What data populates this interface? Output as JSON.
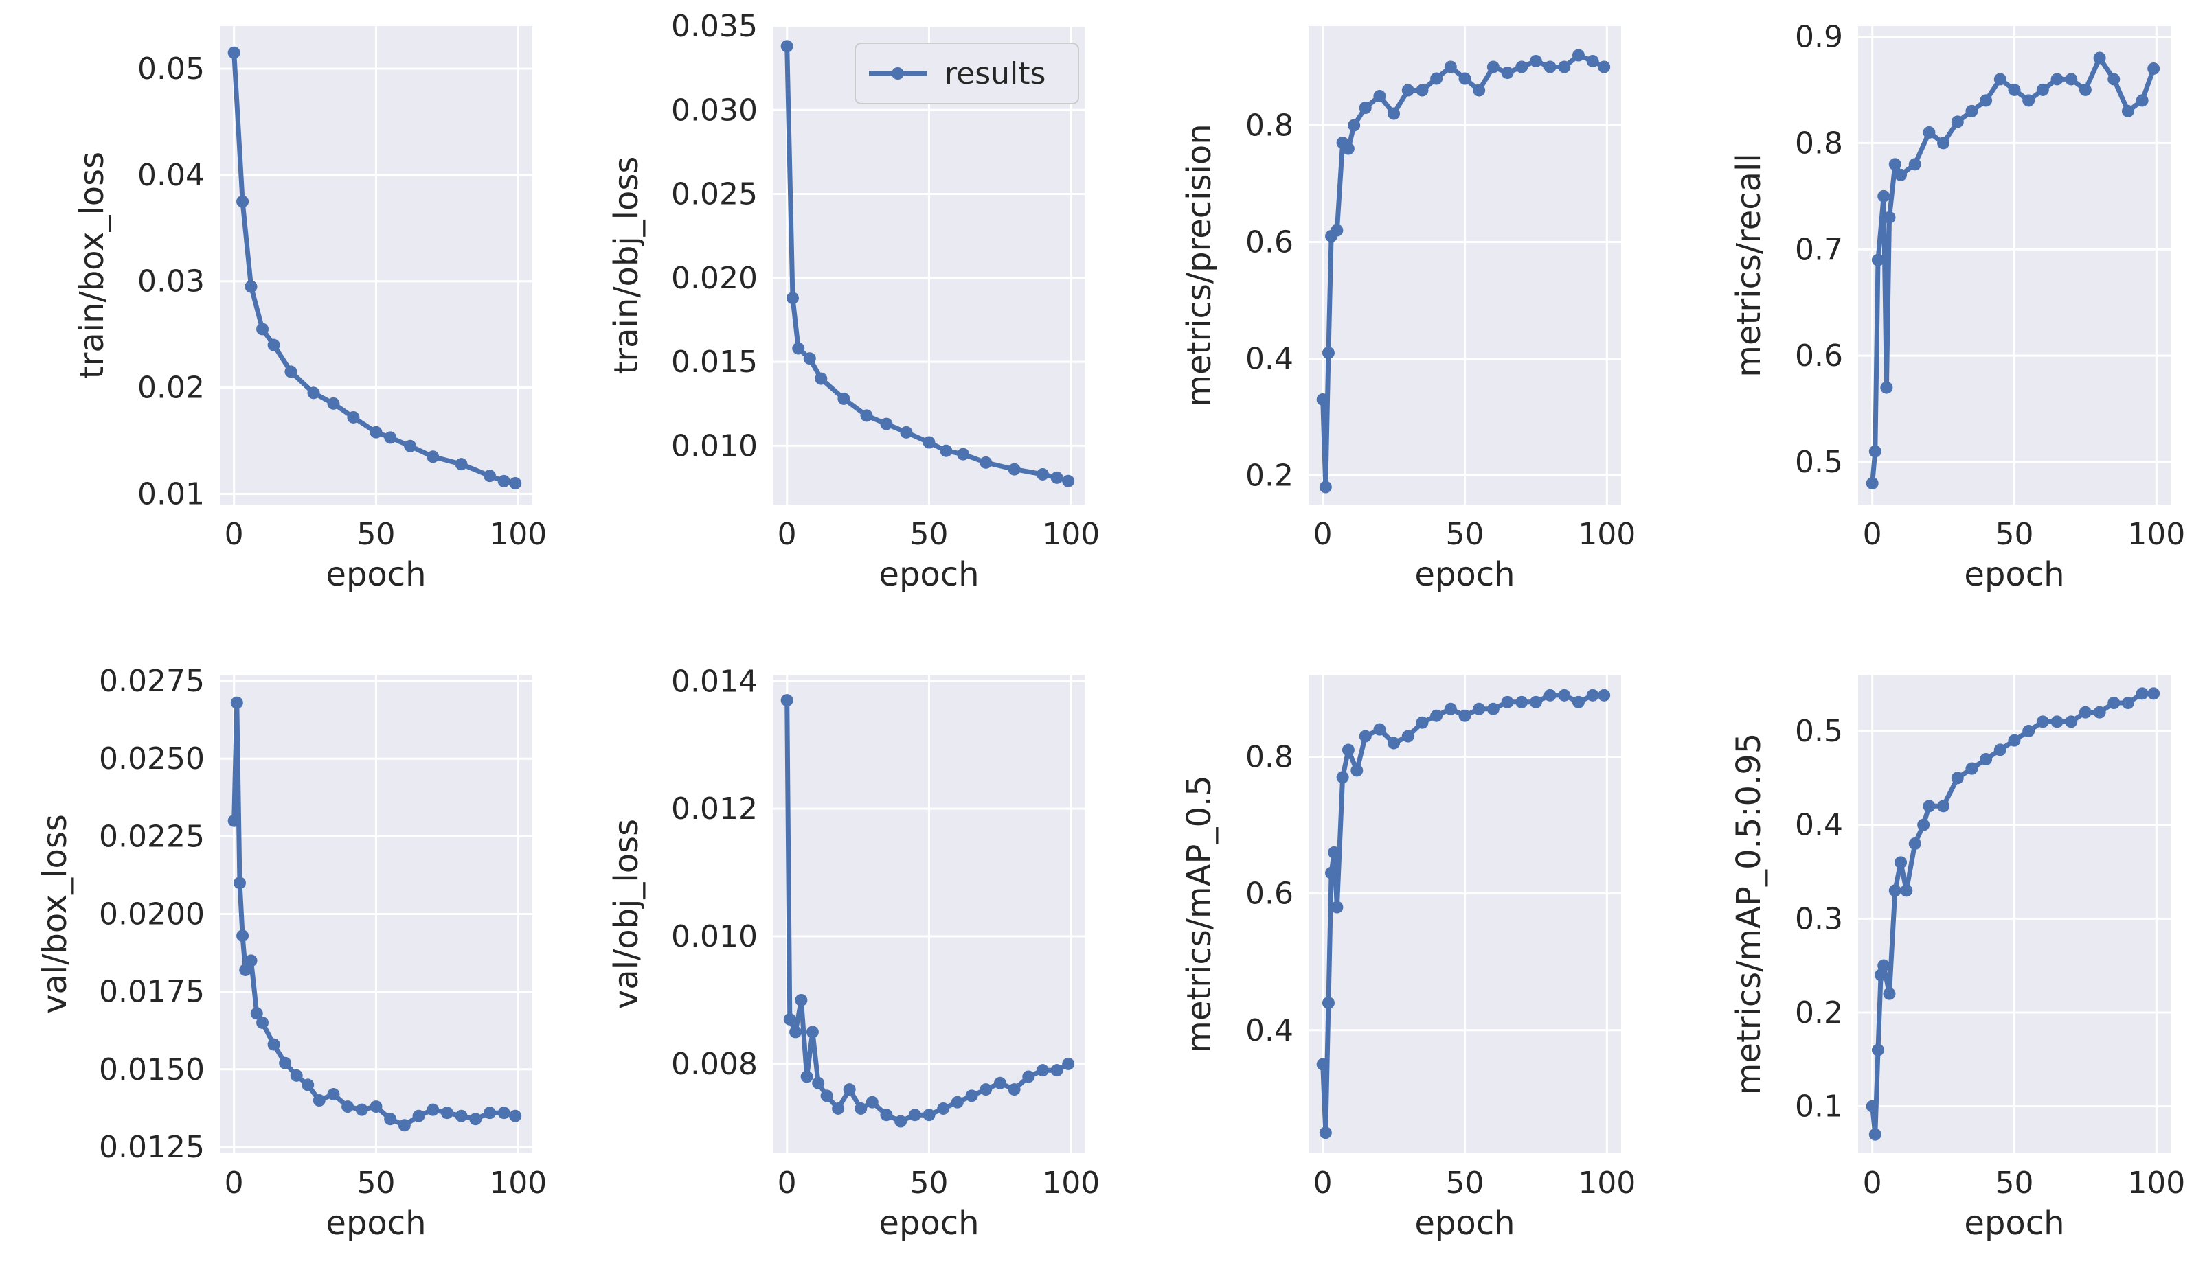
{
  "figure_title": "",
  "colors": {
    "background": "#ffffff",
    "axes_face": "#eaeaf2",
    "grid": "#ffffff",
    "series": "#4c72b0",
    "text": "#262626",
    "legend_border": "#cccccc"
  },
  "legend": {
    "label": "results",
    "placement": "upper-right of train/obj_loss"
  },
  "chart_data": [
    {
      "type": "line",
      "title": "",
      "xlabel": "epoch",
      "ylabel": "train/box_loss",
      "xlim": [
        -5,
        105
      ],
      "ylim": [
        0.009,
        0.054
      ],
      "xticks": [
        0,
        50,
        100
      ],
      "xtick_labels": [
        "0",
        "50",
        "100"
      ],
      "yticks": [
        0.01,
        0.02,
        0.03,
        0.04,
        0.05
      ],
      "ytick_labels": [
        "0.01",
        "0.02",
        "0.03",
        "0.04",
        "0.05"
      ],
      "series": [
        {
          "name": "results",
          "x": [
            0,
            3,
            6,
            10,
            14,
            20,
            28,
            35,
            42,
            50,
            55,
            62,
            70,
            80,
            90,
            95,
            99
          ],
          "values": [
            0.0515,
            0.0375,
            0.0295,
            0.0255,
            0.024,
            0.0215,
            0.0195,
            0.0185,
            0.0172,
            0.0158,
            0.0153,
            0.0145,
            0.0135,
            0.0128,
            0.0117,
            0.0112,
            0.011
          ]
        }
      ]
    },
    {
      "type": "line",
      "title": "",
      "xlabel": "epoch",
      "ylabel": "train/obj_loss",
      "xlim": [
        -5,
        105
      ],
      "ylim": [
        0.0065,
        0.035
      ],
      "xticks": [
        0,
        50,
        100
      ],
      "xtick_labels": [
        "0",
        "50",
        "100"
      ],
      "yticks": [
        0.01,
        0.015,
        0.02,
        0.025,
        0.03,
        0.035
      ],
      "ytick_labels": [
        "0.010",
        "0.015",
        "0.020",
        "0.025",
        "0.030",
        "0.035"
      ],
      "legend": true,
      "series": [
        {
          "name": "results",
          "x": [
            0,
            2,
            4,
            8,
            12,
            20,
            28,
            35,
            42,
            50,
            56,
            62,
            70,
            80,
            90,
            95,
            99
          ],
          "values": [
            0.0338,
            0.0188,
            0.0158,
            0.0152,
            0.014,
            0.0128,
            0.0118,
            0.0113,
            0.0108,
            0.0102,
            0.0097,
            0.0095,
            0.009,
            0.0086,
            0.0083,
            0.0081,
            0.0079
          ]
        }
      ]
    },
    {
      "type": "line",
      "title": "",
      "xlabel": "epoch",
      "ylabel": "metrics/precision",
      "xlim": [
        -5,
        105
      ],
      "ylim": [
        0.15,
        0.97
      ],
      "xticks": [
        0,
        50,
        100
      ],
      "xtick_labels": [
        "0",
        "50",
        "100"
      ],
      "yticks": [
        0.2,
        0.4,
        0.6,
        0.8
      ],
      "ytick_labels": [
        "0.2",
        "0.4",
        "0.6",
        "0.8"
      ],
      "series": [
        {
          "name": "results",
          "x": [
            0,
            1,
            2,
            3,
            5,
            7,
            9,
            11,
            15,
            20,
            25,
            30,
            35,
            40,
            45,
            50,
            55,
            60,
            65,
            70,
            75,
            80,
            85,
            90,
            95,
            99
          ],
          "values": [
            0.33,
            0.18,
            0.41,
            0.61,
            0.62,
            0.77,
            0.76,
            0.8,
            0.83,
            0.85,
            0.82,
            0.86,
            0.86,
            0.88,
            0.9,
            0.88,
            0.86,
            0.9,
            0.89,
            0.9,
            0.91,
            0.9,
            0.9,
            0.92,
            0.91,
            0.9
          ]
        }
      ]
    },
    {
      "type": "line",
      "title": "",
      "xlabel": "epoch",
      "ylabel": "metrics/recall",
      "xlim": [
        -5,
        105
      ],
      "ylim": [
        0.46,
        0.91
      ],
      "xticks": [
        0,
        50,
        100
      ],
      "xtick_labels": [
        "0",
        "50",
        "100"
      ],
      "yticks": [
        0.5,
        0.6,
        0.7,
        0.8,
        0.9
      ],
      "ytick_labels": [
        "0.5",
        "0.6",
        "0.7",
        "0.8",
        "0.9"
      ],
      "series": [
        {
          "name": "results",
          "x": [
            0,
            1,
            2,
            4,
            5,
            6,
            8,
            10,
            15,
            20,
            25,
            30,
            35,
            40,
            45,
            50,
            55,
            60,
            65,
            70,
            75,
            80,
            85,
            90,
            95,
            99
          ],
          "values": [
            0.48,
            0.51,
            0.69,
            0.75,
            0.57,
            0.73,
            0.78,
            0.77,
            0.78,
            0.81,
            0.8,
            0.82,
            0.83,
            0.84,
            0.86,
            0.85,
            0.84,
            0.85,
            0.86,
            0.86,
            0.85,
            0.88,
            0.86,
            0.83,
            0.84,
            0.87
          ]
        }
      ]
    },
    {
      "type": "line",
      "title": "",
      "xlabel": "epoch",
      "ylabel": "val/box_loss",
      "xlim": [
        -5,
        105
      ],
      "ylim": [
        0.0123,
        0.0277
      ],
      "xticks": [
        0,
        50,
        100
      ],
      "xtick_labels": [
        "0",
        "50",
        "100"
      ],
      "yticks": [
        0.0125,
        0.015,
        0.0175,
        0.02,
        0.0225,
        0.025,
        0.0275
      ],
      "ytick_labels": [
        "0.0125",
        "0.0150",
        "0.0175",
        "0.0200",
        "0.0225",
        "0.0250",
        "0.0275"
      ],
      "series": [
        {
          "name": "results",
          "x": [
            0,
            1,
            2,
            3,
            4,
            6,
            8,
            10,
            14,
            18,
            22,
            26,
            30,
            35,
            40,
            45,
            50,
            55,
            60,
            65,
            70,
            75,
            80,
            85,
            90,
            95,
            99
          ],
          "values": [
            0.023,
            0.0268,
            0.021,
            0.0193,
            0.0182,
            0.0185,
            0.0168,
            0.0165,
            0.0158,
            0.0152,
            0.0148,
            0.0145,
            0.014,
            0.0142,
            0.0138,
            0.0137,
            0.0138,
            0.0134,
            0.0132,
            0.0135,
            0.0137,
            0.0136,
            0.0135,
            0.0134,
            0.0136,
            0.0136,
            0.0135
          ]
        }
      ]
    },
    {
      "type": "line",
      "title": "",
      "xlabel": "epoch",
      "ylabel": "val/obj_loss",
      "xlim": [
        -5,
        105
      ],
      "ylim": [
        0.0066,
        0.0141
      ],
      "xticks": [
        0,
        50,
        100
      ],
      "xtick_labels": [
        "0",
        "50",
        "100"
      ],
      "yticks": [
        0.008,
        0.01,
        0.012,
        0.014
      ],
      "ytick_labels": [
        "0.008",
        "0.010",
        "0.012",
        "0.014"
      ],
      "series": [
        {
          "name": "results",
          "x": [
            0,
            1,
            3,
            5,
            7,
            9,
            11,
            14,
            18,
            22,
            26,
            30,
            35,
            40,
            45,
            50,
            55,
            60,
            65,
            70,
            75,
            80,
            85,
            90,
            95,
            99
          ],
          "values": [
            0.0137,
            0.0087,
            0.0085,
            0.009,
            0.0078,
            0.0085,
            0.0077,
            0.0075,
            0.0073,
            0.0076,
            0.0073,
            0.0074,
            0.0072,
            0.0071,
            0.0072,
            0.0072,
            0.0073,
            0.0074,
            0.0075,
            0.0076,
            0.0077,
            0.0076,
            0.0078,
            0.0079,
            0.0079,
            0.008
          ]
        }
      ]
    },
    {
      "type": "line",
      "title": "",
      "xlabel": "epoch",
      "ylabel": "metrics/mAP_0.5",
      "xlim": [
        -5,
        105
      ],
      "ylim": [
        0.22,
        0.92
      ],
      "xticks": [
        0,
        50,
        100
      ],
      "xtick_labels": [
        "0",
        "50",
        "100"
      ],
      "yticks": [
        0.4,
        0.6,
        0.8
      ],
      "ytick_labels": [
        "0.4",
        "0.6",
        "0.8"
      ],
      "series": [
        {
          "name": "results",
          "x": [
            0,
            1,
            2,
            3,
            4,
            5,
            7,
            9,
            12,
            15,
            20,
            25,
            30,
            35,
            40,
            45,
            50,
            55,
            60,
            65,
            70,
            75,
            80,
            85,
            90,
            95,
            99
          ],
          "values": [
            0.35,
            0.25,
            0.44,
            0.63,
            0.66,
            0.58,
            0.77,
            0.81,
            0.78,
            0.83,
            0.84,
            0.82,
            0.83,
            0.85,
            0.86,
            0.87,
            0.86,
            0.87,
            0.87,
            0.88,
            0.88,
            0.88,
            0.89,
            0.89,
            0.88,
            0.89,
            0.89
          ]
        }
      ]
    },
    {
      "type": "line",
      "title": "",
      "xlabel": "epoch",
      "ylabel": "metrics/mAP_0.5:0.95",
      "xlim": [
        -5,
        105
      ],
      "ylim": [
        0.05,
        0.56
      ],
      "xticks": [
        0,
        50,
        100
      ],
      "xtick_labels": [
        "0",
        "50",
        "100"
      ],
      "yticks": [
        0.1,
        0.2,
        0.3,
        0.4,
        0.5
      ],
      "ytick_labels": [
        "0.1",
        "0.2",
        "0.3",
        "0.4",
        "0.5"
      ],
      "series": [
        {
          "name": "results",
          "x": [
            0,
            1,
            2,
            3,
            4,
            6,
            8,
            10,
            12,
            15,
            18,
            20,
            25,
            30,
            35,
            40,
            45,
            50,
            55,
            60,
            65,
            70,
            75,
            80,
            85,
            90,
            95,
            99
          ],
          "values": [
            0.1,
            0.07,
            0.16,
            0.24,
            0.25,
            0.22,
            0.33,
            0.36,
            0.33,
            0.38,
            0.4,
            0.42,
            0.42,
            0.45,
            0.46,
            0.47,
            0.48,
            0.49,
            0.5,
            0.51,
            0.51,
            0.51,
            0.52,
            0.52,
            0.53,
            0.53,
            0.54,
            0.54
          ]
        }
      ]
    }
  ]
}
